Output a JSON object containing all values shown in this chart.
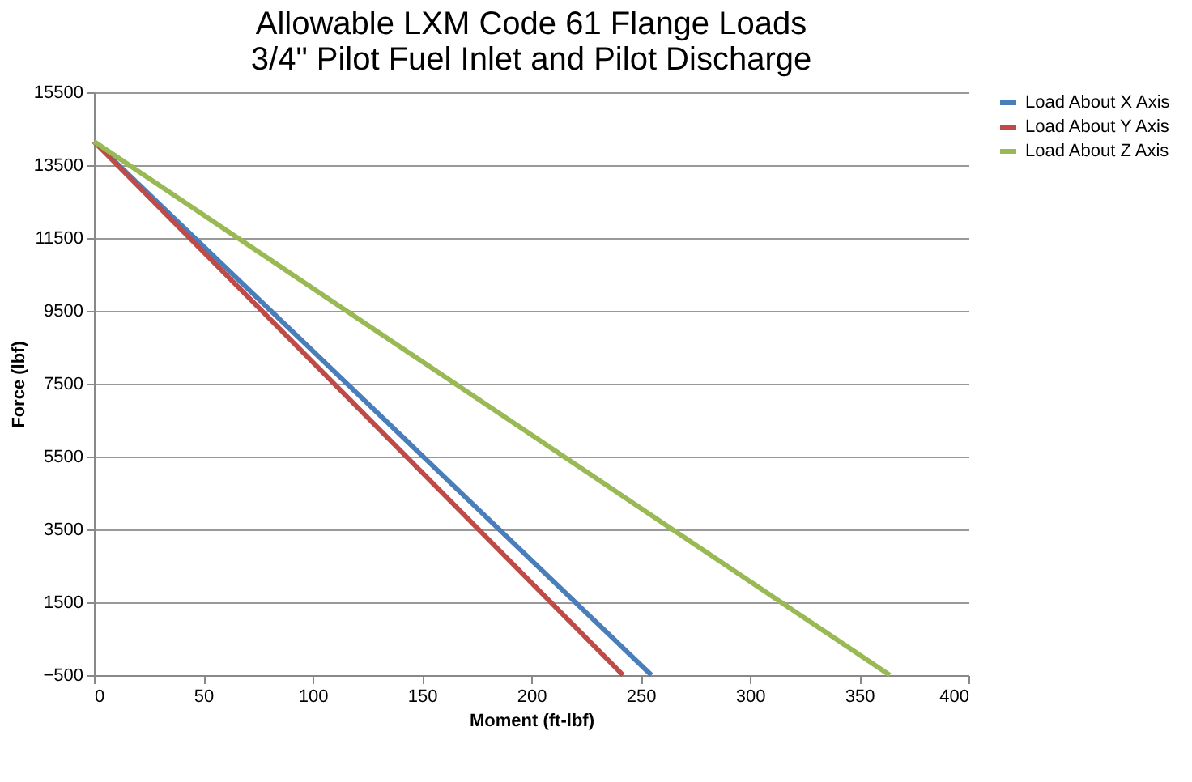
{
  "chart_data": {
    "type": "line",
    "title": [
      "Allowable LXM Code 61 Flange Loads",
      "3/4\" Pilot Fuel Inlet and Pilot Discharge"
    ],
    "xlabel": "Moment (ft-lbf)",
    "ylabel": "Force (lbf)",
    "series": [
      {
        "name": "Load About X Axis",
        "color": "#4a7ebb",
        "x": [
          0,
          255
        ],
        "values": [
          14150,
          -500
        ]
      },
      {
        "name": "Load About Y Axis",
        "color": "#be4b48",
        "x": [
          0,
          242
        ],
        "values": [
          14150,
          -500
        ]
      },
      {
        "name": "Load About Z Axis",
        "color": "#98b954",
        "x": [
          0,
          364
        ],
        "values": [
          14150,
          -500
        ]
      }
    ],
    "xlim": [
      0,
      400
    ],
    "xticks": [
      0,
      50,
      100,
      150,
      200,
      250,
      300,
      350,
      400
    ],
    "ylim": [
      -500,
      15500
    ],
    "yticks": [
      -500,
      1500,
      3500,
      5500,
      7500,
      9500,
      11500,
      13500,
      15500
    ],
    "grid": "y",
    "legend": "right",
    "marker": "none",
    "line_style": "solid"
  }
}
